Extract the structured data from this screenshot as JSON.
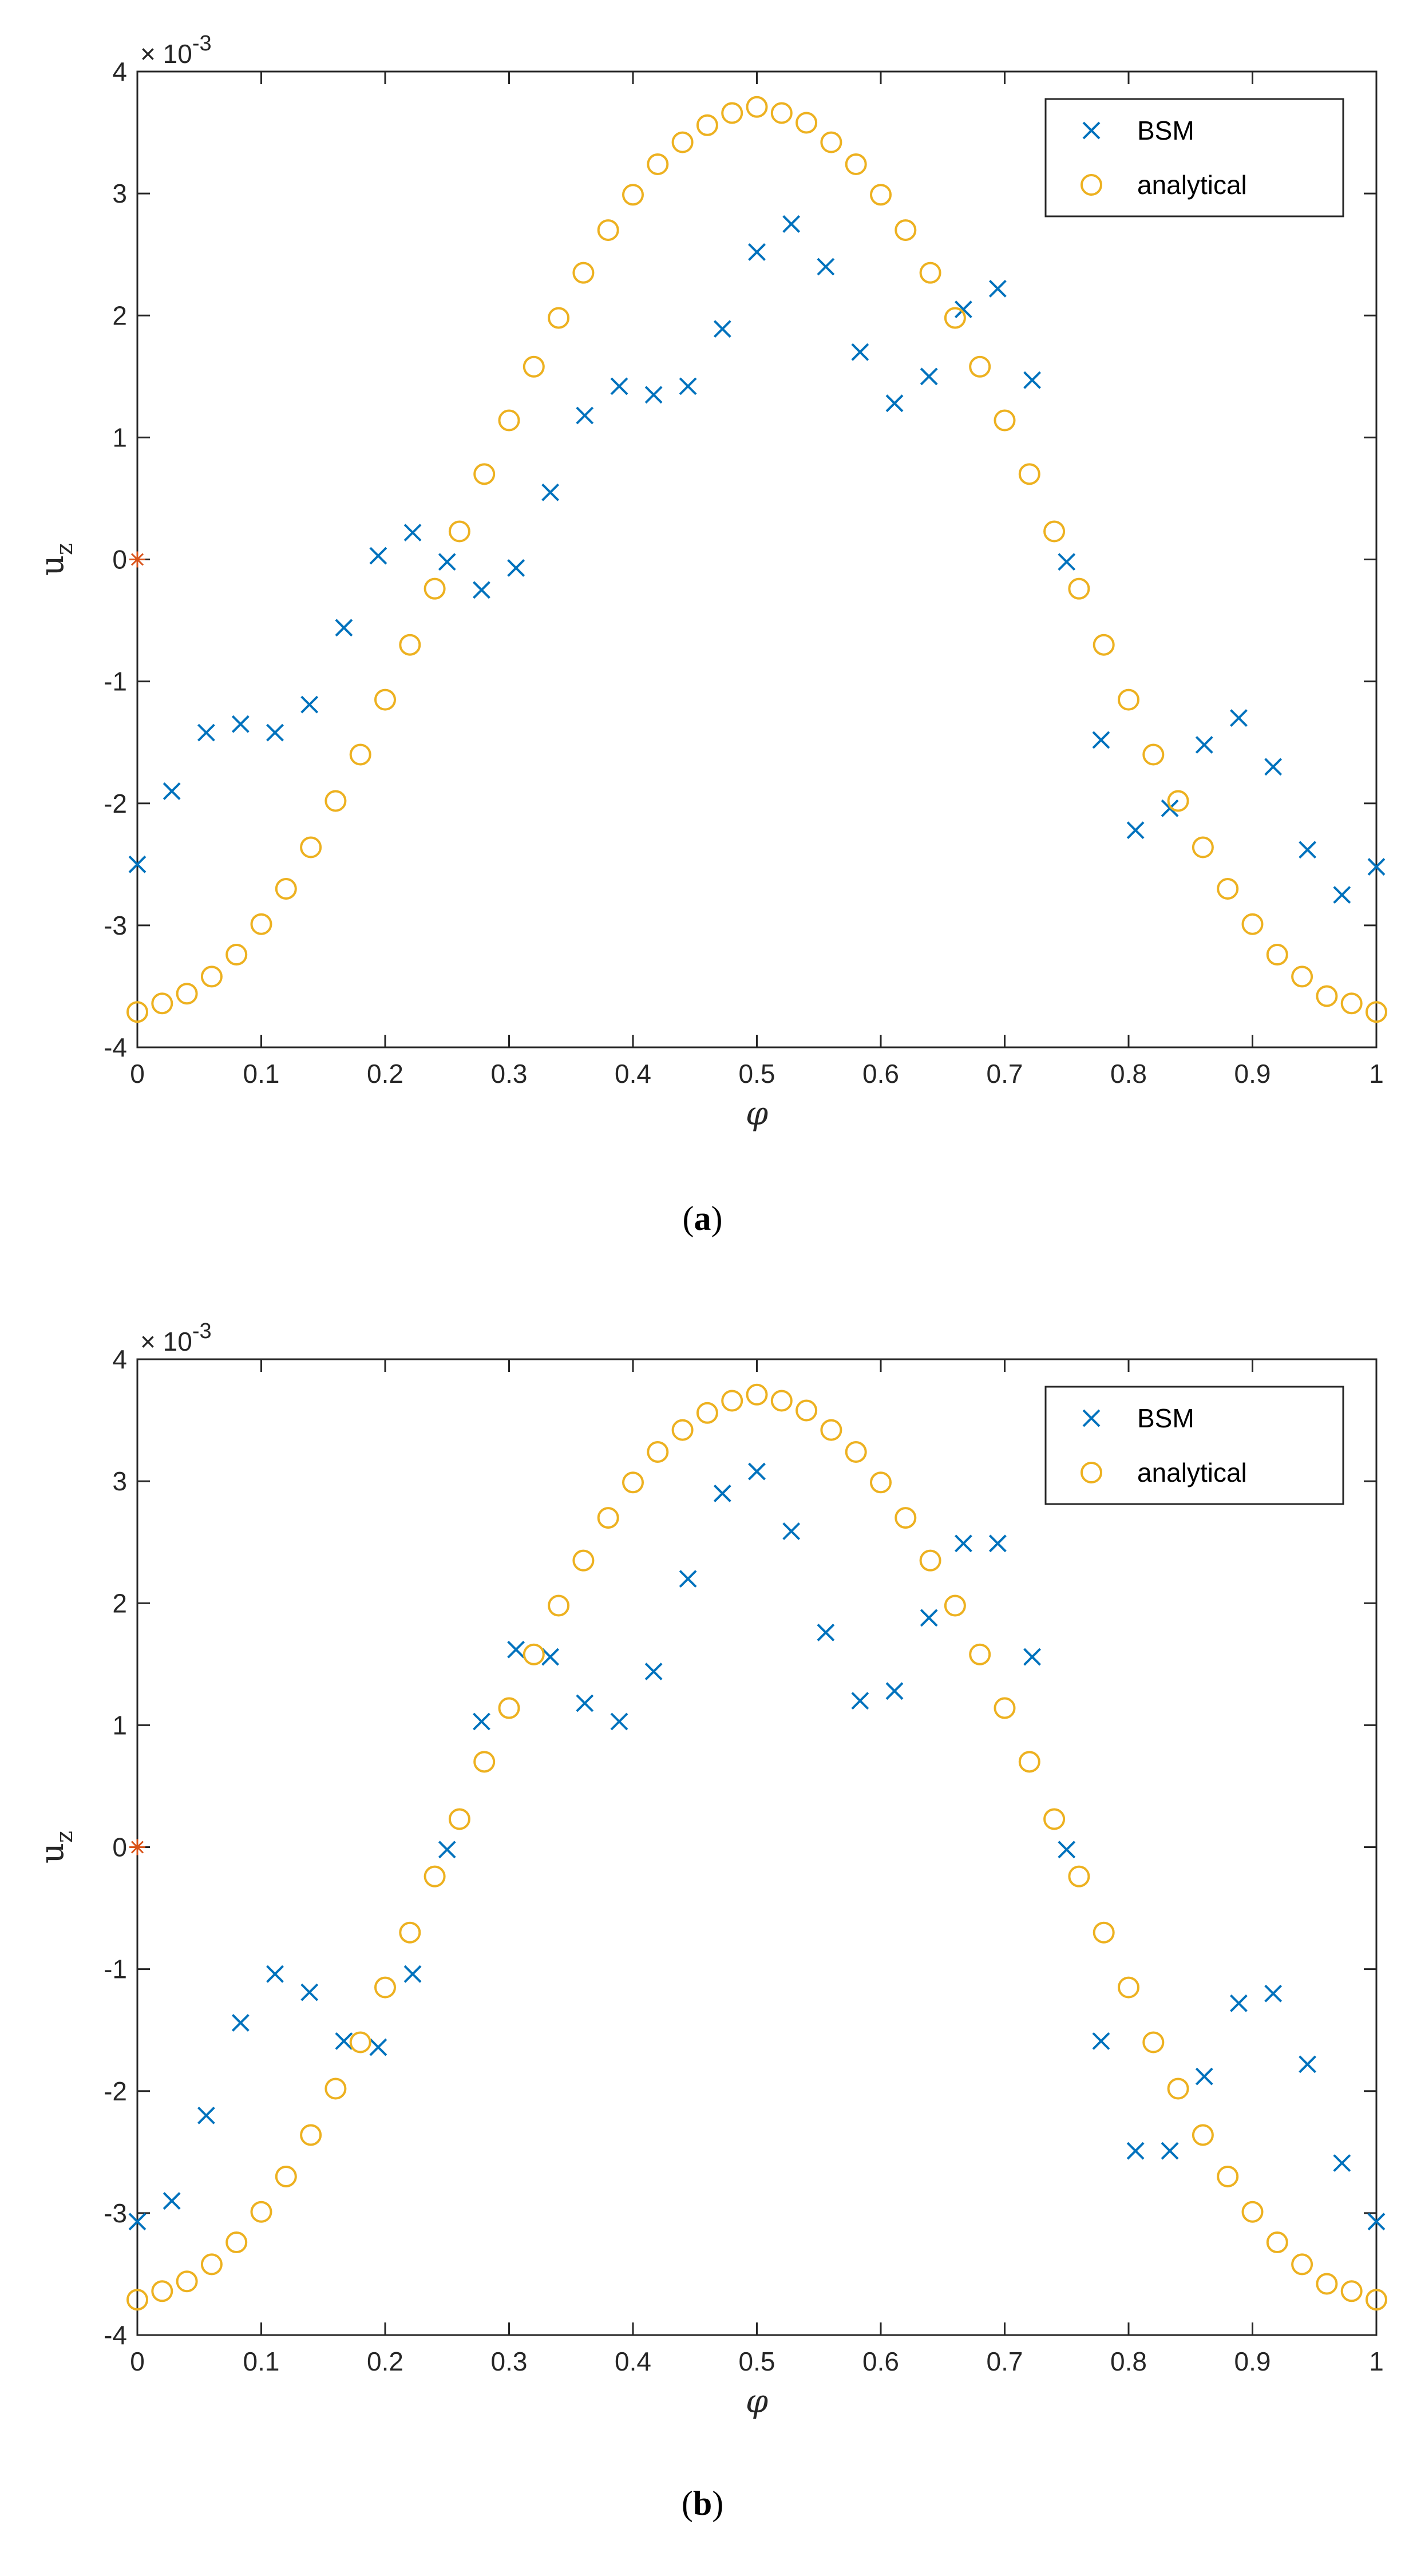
{
  "chart_data": [
    {
      "type": "scatter",
      "caption_letter": "a",
      "title": "",
      "xlabel": "φ",
      "ylabel": "u",
      "ylabel_sub": "z",
      "y_scale_base": "× 10",
      "y_scale_exp": "-3",
      "xlim": [
        0,
        1
      ],
      "ylim": [
        -4,
        4
      ],
      "x_ticks": [
        "0",
        "0.1",
        "0.2",
        "0.3",
        "0.4",
        "0.5",
        "0.6",
        "0.7",
        "0.8",
        "0.9",
        "1"
      ],
      "y_ticks": [
        "-4",
        "-3",
        "-2",
        "-1",
        "0",
        "1",
        "2",
        "3",
        "4"
      ],
      "legend_position": "top-right",
      "series": [
        {
          "name": "BSM",
          "marker": "x",
          "color": "#0072BD",
          "x": [
            0.0,
            0.0278,
            0.0556,
            0.0833,
            0.1111,
            0.1389,
            0.1667,
            0.1944,
            0.2222,
            0.25,
            0.2778,
            0.3056,
            0.3333,
            0.3611,
            0.3889,
            0.4167,
            0.4444,
            0.4722,
            0.5,
            0.5278,
            0.5556,
            0.5833,
            0.6111,
            0.6389,
            0.6667,
            0.6944,
            0.7222,
            0.75,
            0.7778,
            0.8056,
            0.8333,
            0.8611,
            0.8889,
            0.9167,
            0.9444,
            0.9722,
            1.0
          ],
          "y": [
            -2.5,
            -1.9,
            -1.42,
            -1.35,
            -1.42,
            -1.19,
            -0.56,
            0.03,
            0.22,
            -0.02,
            -0.25,
            -0.07,
            0.55,
            1.18,
            1.42,
            1.35,
            1.42,
            1.89,
            2.52,
            2.75,
            2.4,
            1.7,
            1.28,
            1.5,
            2.05,
            2.22,
            1.47,
            -0.02,
            -1.48,
            -2.22,
            -2.04,
            -1.52,
            -1.3,
            -1.7,
            -2.38,
            -2.75,
            -2.52
          ]
        },
        {
          "name": "analytical",
          "marker": "o",
          "color": "#EDB120",
          "x": [
            0.0,
            0.02,
            0.04,
            0.06,
            0.08,
            0.1,
            0.12,
            0.14,
            0.16,
            0.18,
            0.2,
            0.22,
            0.24,
            0.26,
            0.28,
            0.3,
            0.32,
            0.34,
            0.36,
            0.38,
            0.4,
            0.42,
            0.44,
            0.46,
            0.48,
            0.5,
            0.52,
            0.54,
            0.56,
            0.58,
            0.6,
            0.62,
            0.64,
            0.66,
            0.68,
            0.7,
            0.72,
            0.74,
            0.76,
            0.78,
            0.8,
            0.82,
            0.84,
            0.86,
            0.88,
            0.9,
            0.92,
            0.94,
            0.96,
            0.98,
            1.0
          ],
          "y": [
            -3.71,
            -3.64,
            -3.56,
            -3.42,
            -3.24,
            -2.99,
            -2.7,
            -2.36,
            -1.98,
            -1.6,
            -1.15,
            -0.7,
            -0.24,
            0.23,
            0.7,
            1.14,
            1.58,
            1.98,
            2.35,
            2.7,
            2.99,
            3.24,
            3.42,
            3.56,
            3.66,
            3.71,
            3.66,
            3.58,
            3.42,
            3.24,
            2.99,
            2.7,
            2.35,
            1.98,
            1.58,
            1.14,
            0.7,
            0.23,
            -0.24,
            -0.7,
            -1.15,
            -1.6,
            -1.98,
            -2.36,
            -2.7,
            -2.99,
            -3.24,
            -3.42,
            -3.58,
            -3.64,
            -3.71
          ]
        },
        {
          "name": "",
          "marker": "*",
          "color": "#D95319",
          "x": [
            0.0
          ],
          "y": [
            0.0
          ]
        }
      ]
    },
    {
      "type": "scatter",
      "caption_letter": "b",
      "title": "",
      "xlabel": "φ",
      "ylabel": "u",
      "ylabel_sub": "z",
      "y_scale_base": "× 10",
      "y_scale_exp": "-3",
      "xlim": [
        0,
        1
      ],
      "ylim": [
        -4,
        4
      ],
      "x_ticks": [
        "0",
        "0.1",
        "0.2",
        "0.3",
        "0.4",
        "0.5",
        "0.6",
        "0.7",
        "0.8",
        "0.9",
        "1"
      ],
      "y_ticks": [
        "-4",
        "-3",
        "-2",
        "-1",
        "0",
        "1",
        "2",
        "3",
        "4"
      ],
      "legend_position": "top-right",
      "series": [
        {
          "name": "BSM",
          "marker": "x",
          "color": "#0072BD",
          "x": [
            0.0,
            0.0278,
            0.0556,
            0.0833,
            0.1111,
            0.1389,
            0.1667,
            0.1944,
            0.2222,
            0.25,
            0.2778,
            0.3056,
            0.3333,
            0.3611,
            0.3889,
            0.4167,
            0.4444,
            0.4722,
            0.5,
            0.5278,
            0.5556,
            0.5833,
            0.6111,
            0.6389,
            0.6667,
            0.6944,
            0.7222,
            0.75,
            0.7778,
            0.8056,
            0.8333,
            0.8611,
            0.8889,
            0.9167,
            0.9444,
            0.9722,
            1.0
          ],
          "y": [
            -3.07,
            -2.9,
            -2.2,
            -1.44,
            -1.04,
            -1.19,
            -1.59,
            -1.64,
            -1.04,
            -0.02,
            1.03,
            1.62,
            1.56,
            1.18,
            1.03,
            1.44,
            2.2,
            2.9,
            3.08,
            2.59,
            1.76,
            1.2,
            1.28,
            1.88,
            2.49,
            2.49,
            1.56,
            -0.02,
            -1.59,
            -2.49,
            -2.49,
            -1.88,
            -1.28,
            -1.2,
            -1.78,
            -2.59,
            -3.07
          ]
        },
        {
          "name": "analytical",
          "marker": "o",
          "color": "#EDB120",
          "x": [
            0.0,
            0.02,
            0.04,
            0.06,
            0.08,
            0.1,
            0.12,
            0.14,
            0.16,
            0.18,
            0.2,
            0.22,
            0.24,
            0.26,
            0.28,
            0.3,
            0.32,
            0.34,
            0.36,
            0.38,
            0.4,
            0.42,
            0.44,
            0.46,
            0.48,
            0.5,
            0.52,
            0.54,
            0.56,
            0.58,
            0.6,
            0.62,
            0.64,
            0.66,
            0.68,
            0.7,
            0.72,
            0.74,
            0.76,
            0.78,
            0.8,
            0.82,
            0.84,
            0.86,
            0.88,
            0.9,
            0.92,
            0.94,
            0.96,
            0.98,
            1.0
          ],
          "y": [
            -3.71,
            -3.64,
            -3.56,
            -3.42,
            -3.24,
            -2.99,
            -2.7,
            -2.36,
            -1.98,
            -1.6,
            -1.15,
            -0.7,
            -0.24,
            0.23,
            0.7,
            1.14,
            1.58,
            1.98,
            2.35,
            2.7,
            2.99,
            3.24,
            3.42,
            3.56,
            3.66,
            3.71,
            3.66,
            3.58,
            3.42,
            3.24,
            2.99,
            2.7,
            2.35,
            1.98,
            1.58,
            1.14,
            0.7,
            0.23,
            -0.24,
            -0.7,
            -1.15,
            -1.6,
            -1.98,
            -2.36,
            -2.7,
            -2.99,
            -3.24,
            -3.42,
            -3.58,
            -3.64,
            -3.71
          ]
        },
        {
          "name": "",
          "marker": "*",
          "color": "#D95319",
          "x": [
            0.0
          ],
          "y": [
            0.0
          ]
        }
      ]
    }
  ]
}
